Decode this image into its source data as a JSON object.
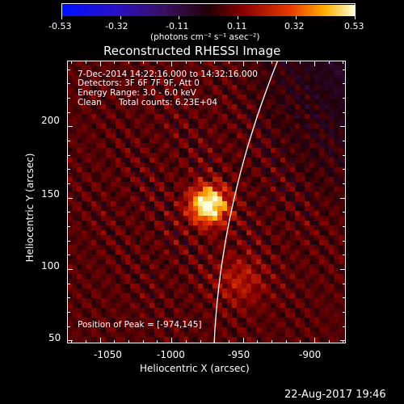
{
  "colorbar": {
    "ticks": [
      "-0.53",
      "-0.32",
      "-0.11",
      "0.11",
      "0.32",
      "0.53"
    ],
    "unit_label": "(photons cm⁻² s⁻¹ asec⁻²)",
    "min": -0.53,
    "max": 0.53
  },
  "title": "Reconstructed RHESSI Image",
  "info": {
    "time_range": "7-Dec-2014 14:22:16.000 to 14:32:16.000",
    "detectors": "Detectors: 3F 6F 7F 9F, Att 0",
    "energy": "Energy Range: 3.0 - 6.0 keV",
    "method": "Clean",
    "counts": "Total counts: 6.23E+04"
  },
  "peak_label": "Position of Peak = [-974,145]",
  "x_axis": {
    "label": "Heliocentric X (arcsec)",
    "ticks": [
      "-1050",
      "-1000",
      "-950",
      "-900"
    ],
    "range": [
      -1073,
      -878
    ]
  },
  "y_axis": {
    "label": "Heliocentric Y (arcsec)",
    "ticks": [
      "50",
      "100",
      "150",
      "200"
    ],
    "range": [
      48,
      246
    ]
  },
  "peak": {
    "x": -974,
    "y": 145
  },
  "footer_date": "22-Aug-2017 19:46",
  "colors": {
    "background": "#000000",
    "text": "#ffffff"
  }
}
